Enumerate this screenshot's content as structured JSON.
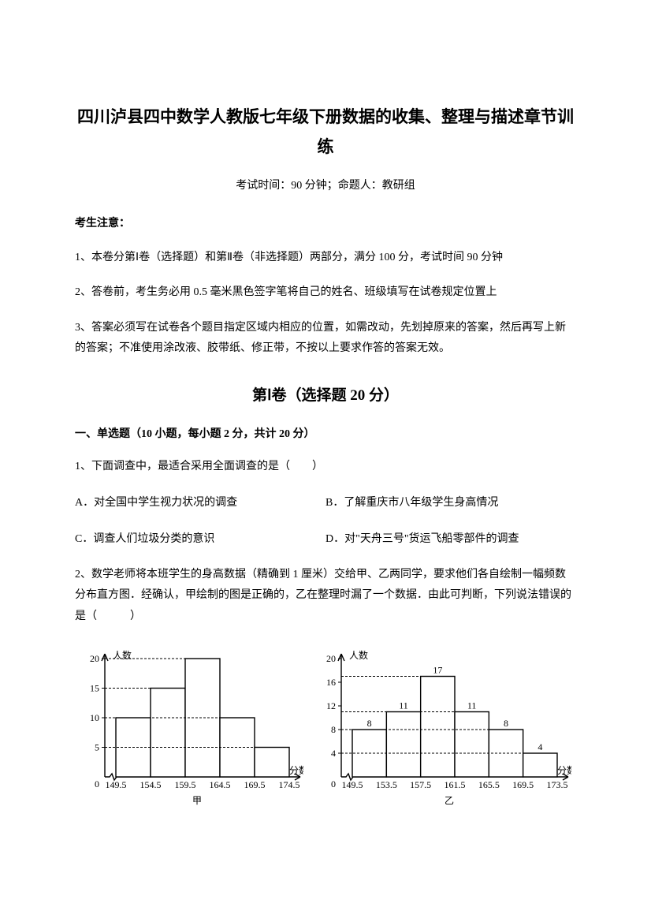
{
  "title": "四川泸县四中数学人教版七年级下册数据的收集、整理与描述章节训练",
  "subtitle": "考试时间：90 分钟；命题人：教研组",
  "notice_head": "考生注意：",
  "notice_1": "1、本卷分第Ⅰ卷（选择题）和第Ⅱ卷（非选择题）两部分，满分 100 分，考试时间 90 分钟",
  "notice_2": "2、答卷前，考生务必用 0.5 毫米黑色签字笔将自己的姓名、班级填写在试卷规定位置上",
  "notice_3": "3、答案必须写在试卷各个题目指定区域内相应的位置，如需改动，先划掉原来的答案，然后再写上新的答案；不准使用涂改液、胶带纸、修正带，不按以上要求作答的答案无效。",
  "section1": "第Ⅰ卷（选择题  20 分）",
  "part1": "一、单选题（10 小题，每小题 2 分，共计 20 分）",
  "q1": {
    "stem": "1、下面调查中，最适合采用全面调查的是（　　）",
    "a": "A．对全国中学生视力状况的调查",
    "b": "B．了解重庆市八年级学生身高情况",
    "c": "C．调查人们垃圾分类的意识",
    "d": "D．对\"天舟三号\"货运飞船零部件的调查"
  },
  "q2": {
    "stem": "2、数学老师将本班学生的身高数据（精确到 1 厘米）交给甲、乙两同学，要求他们各自绘制一幅频数分布直方图．经确认，甲绘制的图是正确的，乙在整理时漏了一个数据．由此可判断，下列说法错误的是（　　　）"
  },
  "chart_jia": {
    "label": "甲",
    "ylabel": "人数",
    "xlabel": "分数",
    "yticks": [
      5,
      10,
      15,
      20
    ],
    "xticks": [
      "149.5",
      "154.5",
      "159.5",
      "164.5",
      "169.5",
      "174.5"
    ],
    "bars": [
      10,
      15,
      20,
      10,
      5
    ],
    "bar_labels": [
      "",
      "",
      "",
      "",
      ""
    ],
    "bar_color": "#ffffff",
    "stroke": "#000000",
    "dash": "3,2"
  },
  "chart_yi": {
    "label": "乙",
    "ylabel": "人数",
    "xlabel": "分数",
    "yticks": [
      4,
      8,
      12,
      16,
      20
    ],
    "xticks": [
      "149.5",
      "153.5",
      "157.5",
      "161.5",
      "165.5",
      "169.5",
      "173.5"
    ],
    "bars": [
      8,
      11,
      17,
      11,
      8,
      4
    ],
    "bar_labels": [
      "8",
      "11",
      "17",
      "11",
      "8",
      "4"
    ],
    "bar_color": "#ffffff",
    "stroke": "#000000",
    "dash": "3,2"
  }
}
